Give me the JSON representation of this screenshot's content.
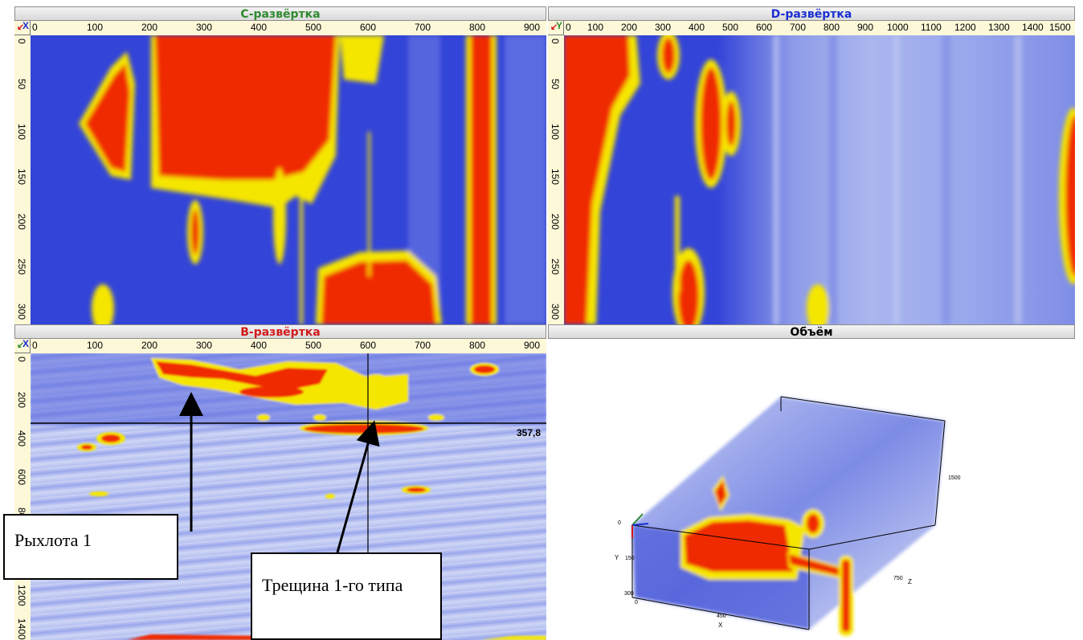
{
  "panels": {
    "c_scan": {
      "title": "С-развёртка",
      "title_color": "#2f8a2f",
      "x_ticks": [
        "0",
        "100",
        "200",
        "300",
        "400",
        "500",
        "600",
        "700",
        "800",
        "900"
      ],
      "y_ticks": [
        "0",
        "50",
        "100",
        "150",
        "200",
        "250",
        "300"
      ]
    },
    "d_scan": {
      "title": "D-развёртка",
      "title_color": "#1a2fd0",
      "x_ticks": [
        "0",
        "100",
        "200",
        "300",
        "400",
        "500",
        "600",
        "700",
        "800",
        "900",
        "1000",
        "1100",
        "1200",
        "1300",
        "1400",
        "1500"
      ],
      "y_ticks": [
        "0",
        "50",
        "100",
        "150",
        "200",
        "250",
        "300"
      ]
    },
    "b_scan": {
      "title": "В-развёртка",
      "title_color": "#d21a1a",
      "x_ticks": [
        "0",
        "100",
        "200",
        "300",
        "400",
        "500",
        "600",
        "700",
        "800",
        "900"
      ],
      "y_ticks": [
        "0",
        "200",
        "400",
        "600",
        "800",
        "1000",
        "1200",
        "1400"
      ],
      "cursor_value": "357,8"
    },
    "volume": {
      "title": "Объём",
      "title_color": "#000000",
      "axis_labels": {
        "x": "X",
        "y": "Y",
        "z": "Z",
        "y_top": "0",
        "y_mid": "150",
        "y_bot": "300",
        "x_bot": "0",
        "x_mid": "450",
        "z_mid": "750",
        "z_far": "1500"
      }
    }
  },
  "annotations": {
    "porosity": "Рыхлота 1",
    "crack": "Трещина 1-го типа"
  },
  "colors": {
    "background_blue": "#3344d8",
    "light_blue": "#b8c4f0",
    "defect_red": "#f02a00",
    "defect_yellow": "#f5e600",
    "ruler_bg": "#fdf8d8"
  }
}
